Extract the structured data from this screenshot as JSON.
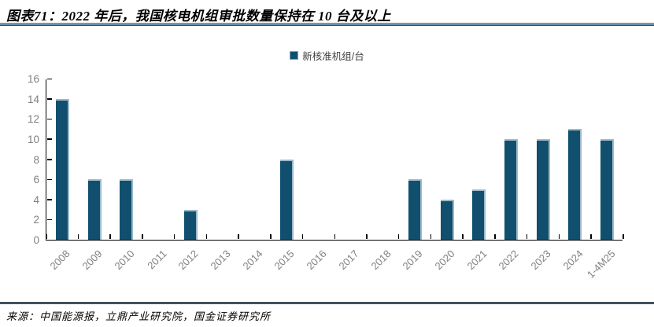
{
  "header": {
    "title": "图表71：2022 年后，我国核电机组审批数量保持在 10 台及以上"
  },
  "legend": {
    "label": "新核准机组/台"
  },
  "chart_data": {
    "type": "bar",
    "title": "图表71：2022 年后，我国核电机组审批数量保持在 10 台及以上",
    "categories": [
      "2008",
      "2009",
      "2010",
      "2011",
      "2012",
      "2013",
      "2014",
      "2015",
      "2016",
      "2017",
      "2018",
      "2019",
      "2020",
      "2021",
      "2022",
      "2023",
      "2024",
      "1-4M25"
    ],
    "values": [
      14,
      6,
      6,
      0,
      3,
      0,
      0,
      8,
      0,
      0,
      0,
      6,
      4,
      5,
      10,
      10,
      11,
      10
    ],
    "series_name": "新核准机组/台",
    "xlabel": "",
    "ylabel": "",
    "ylim": [
      0,
      16
    ],
    "yticks": [
      0,
      2,
      4,
      6,
      8,
      10,
      12,
      14,
      16
    ],
    "grid": false,
    "legend_position": "top-center",
    "bar_color": "#10506e",
    "bar_highlight_color": "#9db9cb",
    "axis_color": "#000000",
    "tick_label_color": "#7f7f7f"
  },
  "footer": {
    "source": "来源：中国能源报，立鼎产业研究院，国金证券研究所"
  },
  "colors": {
    "rule_blue": "#1f5c8b",
    "rule_dark": "#4a4a4a",
    "accent": "#10506e"
  }
}
